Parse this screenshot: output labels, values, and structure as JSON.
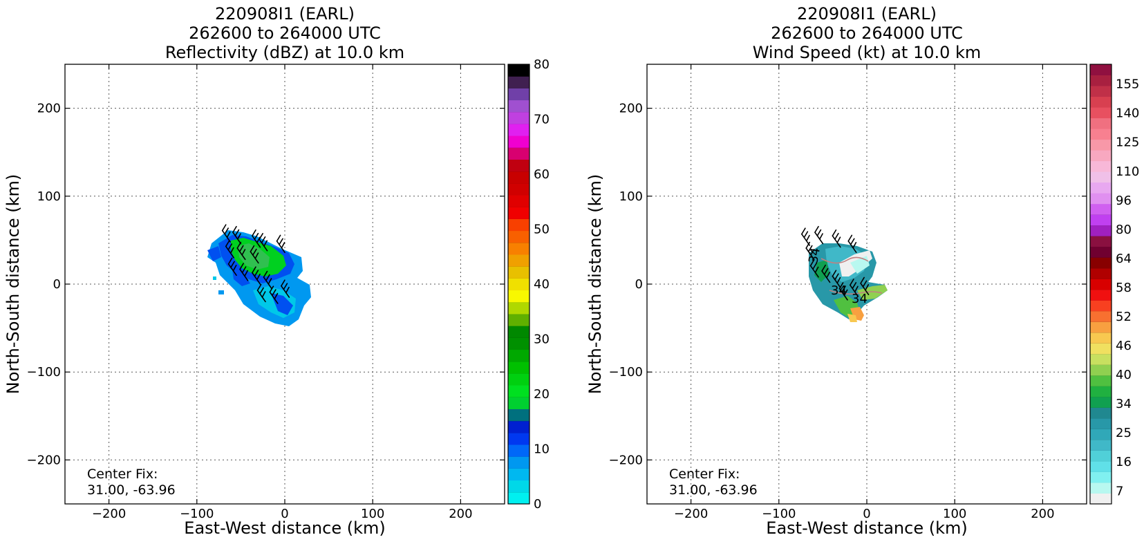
{
  "chart_data": [
    {
      "type": "heatmap",
      "title_lines": [
        "220908I1 (EARL)",
        "262600 to 264000 UTC",
        "Reflectivity (dBZ) at 10.0 km"
      ],
      "xlabel": "East-West distance (km)",
      "ylabel": "North-South distance (km)",
      "xlim": [
        -250,
        250
      ],
      "ylim": [
        -250,
        250
      ],
      "xticks": [
        -200,
        -100,
        0,
        100,
        200
      ],
      "yticks": [
        -200,
        -100,
        0,
        100,
        200
      ],
      "grid": true,
      "annotation_lines": [
        "Center Fix:",
        "31.00, -63.96"
      ],
      "colorbar": {
        "min": 0,
        "max": 80,
        "ticks": [
          "0",
          "10",
          "20",
          "30",
          "40",
          "50",
          "60",
          "70",
          "80"
        ],
        "colors": [
          "#00f0f0",
          "#00d8e8",
          "#00b8f0",
          "#0098f0",
          "#0068f8",
          "#0038f0",
          "#0020d0",
          "#00707e",
          "#00d030",
          "#00e020",
          "#00d010",
          "#00c000",
          "#00a800",
          "#009000",
          "#008800",
          "#60b000",
          "#b0d800",
          "#f8f800",
          "#f0e000",
          "#e8c000",
          "#f0a000",
          "#f88000",
          "#f86000",
          "#f84000",
          "#f00000",
          "#e00000",
          "#d00000",
          "#c80000",
          "#c00010",
          "#d80070",
          "#f000d0",
          "#e020f0",
          "#c040e0",
          "#a050d0",
          "#7040a8",
          "#402050",
          "#000000"
        ]
      },
      "field_description_colors": [
        "#0050f0",
        "#0098f0",
        "#00c8e8",
        "#00d020",
        "#30c050",
        "#00a0c0"
      ],
      "barbs": [
        {
          "x": -62,
          "y": 48
        },
        {
          "x": -50,
          "y": 46
        },
        {
          "x": -28,
          "y": 42
        },
        {
          "x": -20,
          "y": 38
        },
        {
          "x": 0,
          "y": 36
        },
        {
          "x": -58,
          "y": 30
        },
        {
          "x": -45,
          "y": 28
        },
        {
          "x": -30,
          "y": 24
        },
        {
          "x": -55,
          "y": 10
        },
        {
          "x": -42,
          "y": 4
        },
        {
          "x": -28,
          "y": 0
        },
        {
          "x": -15,
          "y": -5
        },
        {
          "x": -22,
          "y": -20
        },
        {
          "x": -8,
          "y": -22
        },
        {
          "x": 5,
          "y": -15
        }
      ]
    },
    {
      "type": "heatmap",
      "title_lines": [
        "220908I1 (EARL)",
        "262600 to 264000 UTC",
        "Wind Speed (kt) at 10.0 km"
      ],
      "xlabel": "East-West distance (km)",
      "ylabel": "North-South distance (km)",
      "xlim": [
        -250,
        250
      ],
      "ylim": [
        -250,
        250
      ],
      "xticks": [
        -200,
        -100,
        0,
        100,
        200
      ],
      "yticks": [
        -200,
        -100,
        0,
        100,
        200
      ],
      "grid": true,
      "annotation_lines": [
        "Center Fix:",
        "31.00, -63.96"
      ],
      "contour_labels": [
        "34",
        "34",
        "34"
      ],
      "colorbar": {
        "min": 4,
        "max": 160,
        "ticks": [
          "7",
          "16",
          "25",
          "34",
          "40",
          "46",
          "52",
          "58",
          "64",
          "80",
          "96",
          "110",
          "125",
          "140",
          "155"
        ],
        "colors": [
          "#f0f0f0",
          "#b8f8f0",
          "#80f0f0",
          "#60e0e8",
          "#50d0d8",
          "#40b8c8",
          "#30a8b8",
          "#2898a8",
          "#208890",
          "#10a050",
          "#20b040",
          "#50c040",
          "#90d050",
          "#c8e060",
          "#f0e060",
          "#f8c850",
          "#f8a040",
          "#f87030",
          "#f84020",
          "#f01010",
          "#d80000",
          "#b00000",
          "#880000",
          "#700030",
          "#8a1040",
          "#a020c0",
          "#c040f0",
          "#d060f0",
          "#e090f0",
          "#e8a8f0",
          "#f0c0e8",
          "#f8b8d8",
          "#f8a8c0",
          "#f898a8",
          "#f88090",
          "#f07080",
          "#e85060",
          "#d84050",
          "#c03048",
          "#a82040",
          "#901040"
        ]
      },
      "field_description_colors": [
        "#2898a8",
        "#50d0d8",
        "#f0f0f0",
        "#50c040",
        "#f8c850",
        "#f8a040"
      ],
      "barbs": [
        {
          "x": -65,
          "y": 44
        },
        {
          "x": -50,
          "y": 46
        },
        {
          "x": -30,
          "y": 42
        },
        {
          "x": -12,
          "y": 36
        },
        {
          "x": -60,
          "y": 28
        },
        {
          "x": -55,
          "y": 8
        },
        {
          "x": -42,
          "y": 2
        },
        {
          "x": -30,
          "y": -4
        },
        {
          "x": -22,
          "y": -18
        },
        {
          "x": -10,
          "y": -14
        },
        {
          "x": 2,
          "y": -12
        }
      ]
    }
  ]
}
